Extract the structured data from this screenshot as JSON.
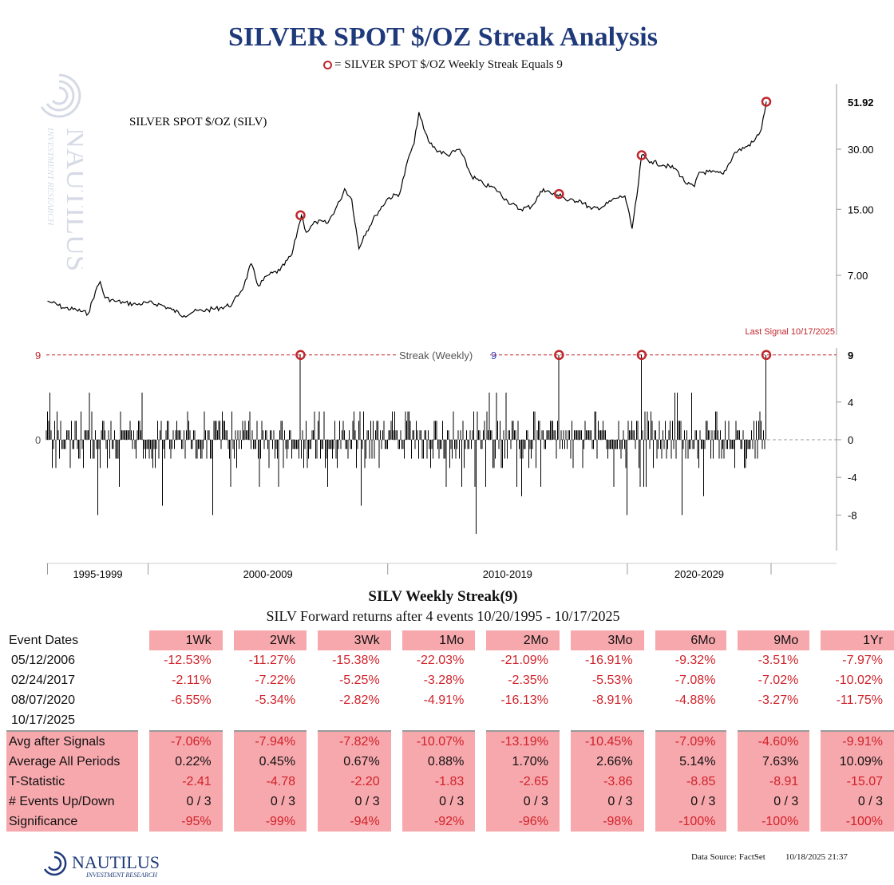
{
  "title": "SILVER SPOT $/OZ Streak Analysis",
  "legend_text": "= SILVER SPOT $/OZ Weekly Streak Equals 9",
  "colors": {
    "title": "#1f3a7a",
    "signal": "#c0272d",
    "negative": "#d0222a",
    "table_fill": "#f7a8ad"
  },
  "chart_data": [
    {
      "type": "line",
      "name": "price",
      "series_label": "SILVER SPOT $/OZ (SILV)",
      "scale": "log",
      "y_ticks": [
        "30.00",
        "15.00",
        "7.00"
      ],
      "last_value_label": "51.92",
      "annotation": "Last Signal 10/17/2025",
      "x": [
        1995.8,
        1996.0,
        1996.5,
        1997.0,
        1997.5,
        1997.8,
        1998.0,
        1998.2,
        1998.6,
        1999.0,
        1999.5,
        2000.0,
        2000.5,
        2001.0,
        2001.5,
        2001.9,
        2002.5,
        2003.0,
        2003.5,
        2004.0,
        2004.3,
        2004.6,
        2005.0,
        2005.5,
        2006.0,
        2006.3,
        2006.4,
        2006.6,
        2007.0,
        2007.5,
        2008.0,
        2008.2,
        2008.5,
        2008.8,
        2009.0,
        2009.5,
        2010.0,
        2010.5,
        2010.9,
        2011.1,
        2011.3,
        2011.5,
        2011.7,
        2012.0,
        2012.5,
        2013.0,
        2013.5,
        2014.0,
        2014.5,
        2015.0,
        2015.5,
        2016.0,
        2016.5,
        2017.0,
        2017.2,
        2017.5,
        2018.0,
        2018.5,
        2019.0,
        2019.5,
        2019.9,
        2020.2,
        2020.4,
        2020.6,
        2021.0,
        2021.5,
        2022.0,
        2022.5,
        2022.8,
        2023.0,
        2023.5,
        2024.0,
        2024.5,
        2025.0,
        2025.3,
        2025.6,
        2025.8
      ],
      "y": [
        5.2,
        5.1,
        4.8,
        4.7,
        4.5,
        5.8,
        6.5,
        5.4,
        5.2,
        5.1,
        5.0,
        5.1,
        5.0,
        4.7,
        4.4,
        4.6,
        4.7,
        4.8,
        5.0,
        6.2,
        8.0,
        6.2,
        7.0,
        7.4,
        8.9,
        12.6,
        14.0,
        11.5,
        13.0,
        12.8,
        16.5,
        19.0,
        16.8,
        9.5,
        11.0,
        14.0,
        17.0,
        18.0,
        28.0,
        32.0,
        46.0,
        38.0,
        33.0,
        30.0,
        28.0,
        30.0,
        22.0,
        20.0,
        19.0,
        16.5,
        15.0,
        15.5,
        19.0,
        17.5,
        17.9,
        16.5,
        16.7,
        15.0,
        15.5,
        17.0,
        17.5,
        12.0,
        17.5,
        28.0,
        26.0,
        25.0,
        24.0,
        20.0,
        19.5,
        23.0,
        23.0,
        22.5,
        29.0,
        31.0,
        33.0,
        38.0,
        51.92
      ]
    },
    {
      "type": "bar",
      "name": "streak",
      "series_label": "Streak (Weekly)",
      "series_label_value": "9",
      "threshold": 9,
      "threshold_label": "9",
      "zero_label": "0",
      "y_ticks": [
        "4",
        "0",
        "-4",
        "-8"
      ],
      "ylim": [
        -10,
        9
      ],
      "signal_events": [
        "05/12/2006",
        "02/24/2017",
        "08/07/2020",
        "10/17/2025"
      ],
      "signal_x": [
        2006.36,
        2017.15,
        2020.6,
        2025.8
      ],
      "extreme_x": [
        1997.9,
        2000.6,
        2002.7,
        2008.9,
        2013.7,
        2015.6,
        2020.0,
        2022.3,
        2023.2
      ],
      "extreme_y": [
        -8,
        -7,
        -8,
        -7,
        -10,
        -6,
        -8,
        -8,
        -6
      ],
      "x_range": [
        1995.75,
        2026.0
      ]
    }
  ],
  "x_axis_labels": [
    "1995-1999",
    "2000-2009",
    "2010-2019",
    "2020-2029"
  ],
  "table": {
    "title": "SILV Weekly Streak(9)",
    "subtitle": "SILV Forward returns after 4 events 10/20/1995 - 10/17/2025",
    "corner_label": "Event Dates",
    "columns": [
      "1Wk",
      "2Wk",
      "3Wk",
      "1Mo",
      "2Mo",
      "3Mo",
      "6Mo",
      "9Mo",
      "1Yr"
    ],
    "event_rows": [
      {
        "date": "05/12/2006",
        "values": [
          "-12.53%",
          "-11.27%",
          "-15.38%",
          "-22.03%",
          "-21.09%",
          "-16.91%",
          "-9.32%",
          "-3.51%",
          "-7.97%"
        ]
      },
      {
        "date": "02/24/2017",
        "values": [
          "-2.11%",
          "-7.22%",
          "-5.25%",
          "-3.28%",
          "-2.35%",
          "-5.53%",
          "-7.08%",
          "-7.02%",
          "-10.02%"
        ]
      },
      {
        "date": "08/07/2020",
        "values": [
          "-6.55%",
          "-5.34%",
          "-2.82%",
          "-4.91%",
          "-16.13%",
          "-8.91%",
          "-4.88%",
          "-3.27%",
          "-11.75%"
        ]
      },
      {
        "date": "10/17/2025",
        "values": [
          "",
          "",
          "",
          "",
          "",
          "",
          "",
          "",
          ""
        ]
      }
    ],
    "summary_rows": [
      {
        "label": "Avg after Signals",
        "values": [
          "-7.06%",
          "-7.94%",
          "-7.82%",
          "-10.07%",
          "-13.19%",
          "-10.45%",
          "-7.09%",
          "-4.60%",
          "-9.91%"
        ]
      },
      {
        "label": "Average All Periods",
        "values": [
          "0.22%",
          "0.45%",
          "0.67%",
          "0.88%",
          "1.70%",
          "2.66%",
          "5.14%",
          "7.63%",
          "10.09%"
        ]
      },
      {
        "label": "T-Statistic",
        "values": [
          "-2.41",
          "-4.78",
          "-2.20",
          "-1.83",
          "-2.65",
          "-3.86",
          "-8.85",
          "-8.91",
          "-15.07"
        ]
      },
      {
        "label": "# Events Up/Down",
        "values": [
          "0 / 3",
          "0 / 3",
          "0 / 3",
          "0 / 3",
          "0 / 3",
          "0 / 3",
          "0 / 3",
          "0 / 3",
          "0 / 3"
        ]
      },
      {
        "label": "Significance",
        "values": [
          "-95%",
          "-99%",
          "-94%",
          "-92%",
          "-96%",
          "-98%",
          "-100%",
          "-100%",
          "-100%"
        ]
      }
    ]
  },
  "footer": {
    "logo_text": "NAUTILUS",
    "logo_subtext": "INVESTMENT RESEARCH",
    "source": "Data Source: FactSet",
    "timestamp": "10/18/2025 21:37"
  },
  "watermark_text": "NAUTILUS",
  "watermark_subtext": "INVESTMENT RESEARCH"
}
